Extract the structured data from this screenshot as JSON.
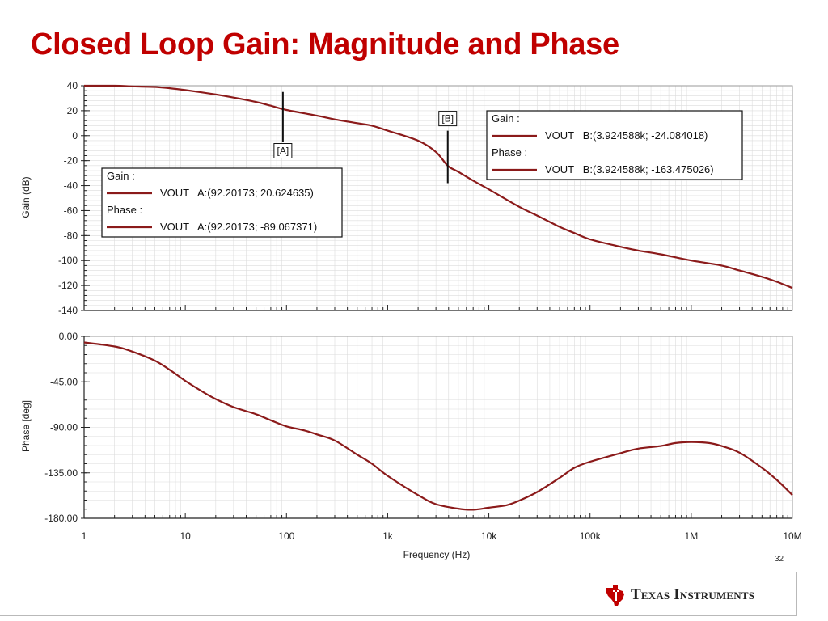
{
  "slide": {
    "title": "Closed Loop Gain: Magnitude and Phase",
    "page_number": "32",
    "brand_name": "Texas Instruments"
  },
  "colors": {
    "title": "#c00000",
    "trace": "#8b1a1a",
    "grid": "#dcdcdc",
    "logo": "#c00000"
  },
  "icons": {
    "logo": "ti-logo-icon"
  },
  "chart_data": [
    {
      "type": "line",
      "xscale": "log",
      "xlim": [
        1,
        10000000
      ],
      "x_tick_labels": [
        "1",
        "10",
        "100",
        "1k",
        "10k",
        "100k",
        "1M",
        "10M"
      ],
      "xlabel": "",
      "ylabel": "Gain (dB)",
      "ylim": [
        -140,
        40
      ],
      "y_ticks": [
        40,
        20,
        0,
        -20,
        -40,
        -60,
        -80,
        -100,
        -120,
        -140
      ],
      "grid": true,
      "series": [
        {
          "name": "VOUT",
          "x": [
            1,
            2,
            3,
            5,
            7,
            10,
            20,
            30,
            50,
            70,
            100,
            200,
            300,
            500,
            700,
            1000,
            2000,
            3000,
            3924.588,
            5000,
            7000,
            10000,
            20000,
            30000,
            50000,
            70000,
            100000,
            200000,
            300000,
            500000,
            1000000,
            2000000,
            3000000,
            5000000,
            7000000,
            10000000
          ],
          "y": [
            40,
            40,
            39.5,
            39,
            38,
            36.5,
            33,
            30.5,
            27,
            24,
            20.6,
            16,
            13,
            10,
            8,
            4,
            -4,
            -13,
            -24.08,
            -29,
            -36,
            -43,
            -57,
            -64,
            -73,
            -78,
            -83,
            -89,
            -92,
            -95,
            -100,
            -104,
            -108,
            -113,
            -117,
            -122
          ]
        }
      ],
      "markers": [
        {
          "label": "[A]",
          "x": 92.20173,
          "y": 20.624635,
          "box_top_y": 35,
          "box_bottom_y": -5
        },
        {
          "label": "[B]",
          "x": 3924.588,
          "y": -24.084018,
          "box_top_y": 4,
          "box_bottom_y": -38
        }
      ],
      "legends": [
        {
          "id": "A",
          "gain_heading": "Gain :",
          "gain_entry": "VOUT   A:(92.20173; 20.624635)",
          "phase_heading": "Phase :",
          "phase_entry": "VOUT   A:(92.20173; -89.067371)"
        },
        {
          "id": "B",
          "gain_heading": "Gain :",
          "gain_entry": "VOUT   B:(3.924588k; -24.084018)",
          "phase_heading": "Phase :",
          "phase_entry": "VOUT   B:(3.924588k; -163.475026)"
        }
      ]
    },
    {
      "type": "line",
      "xscale": "log",
      "xlim": [
        1,
        10000000
      ],
      "x_tick_labels": [
        "1",
        "10",
        "100",
        "1k",
        "10k",
        "100k",
        "1M",
        "10M"
      ],
      "xlabel": "Frequency (Hz)",
      "ylabel": "Phase [deg]",
      "ylim": [
        -180,
        0
      ],
      "y_ticks": [
        0,
        -45,
        -90,
        -135,
        -180
      ],
      "y_tick_labels": [
        "0.00",
        "-45.00",
        "-90.00",
        "-135.00",
        "-180.00"
      ],
      "grid": true,
      "series": [
        {
          "name": "VOUT",
          "x": [
            1,
            2,
            3,
            5,
            7,
            10,
            15,
            20,
            30,
            50,
            70,
            100,
            150,
            200,
            300,
            500,
            700,
            1000,
            2000,
            3000,
            5000,
            7000,
            10000,
            15000,
            20000,
            30000,
            50000,
            70000,
            100000,
            200000,
            300000,
            500000,
            700000,
            1000000,
            1500000,
            2000000,
            3000000,
            5000000,
            7000000,
            10000000
          ],
          "y": [
            -6,
            -10,
            -15,
            -24,
            -33,
            -44,
            -55,
            -62,
            -70,
            -77,
            -83,
            -89,
            -93,
            -97,
            -103,
            -117,
            -126,
            -138,
            -157,
            -166,
            -170.5,
            -171.5,
            -169.5,
            -167,
            -162.5,
            -154,
            -140,
            -130,
            -124,
            -115.5,
            -111,
            -108.5,
            -105.5,
            -104.5,
            -105.5,
            -108.5,
            -115,
            -130,
            -142,
            -157
          ]
        }
      ]
    }
  ]
}
